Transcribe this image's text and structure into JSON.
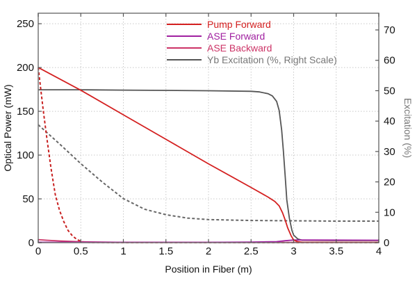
{
  "chart_data": {
    "type": "line",
    "title": "",
    "xlabel": "Position in Fiber (m)",
    "ylabel": "Optical Power (mW)",
    "ylabel_right": "Excitation (%)",
    "xlim": [
      0,
      4
    ],
    "ylim": [
      0,
      262
    ],
    "ylim_right": [
      0,
      75.5
    ],
    "xticks": [
      0,
      0.5,
      1,
      1.5,
      2,
      2.5,
      3,
      3.5,
      4
    ],
    "xtick_labels": [
      "0",
      "0.5",
      "1",
      "1.5",
      "2",
      "2.5",
      "3",
      "3.5",
      "4"
    ],
    "yticks": [
      0,
      50,
      100,
      150,
      200,
      250
    ],
    "ytick_labels": [
      "0",
      "50",
      "100",
      "150",
      "200",
      "250"
    ],
    "yticks_right": [
      0,
      10,
      20,
      30,
      40,
      50,
      60,
      70
    ],
    "ytick_labels_right": [
      "0",
      "10",
      "20",
      "30",
      "40",
      "50",
      "60",
      "70"
    ],
    "grid": true,
    "legend_position": "top-center",
    "series": [
      {
        "name": "Pump Forward",
        "axis": "left",
        "style": "solid",
        "color": "#d42020",
        "legend": true,
        "x": [
          0,
          0.5,
          1,
          1.5,
          2,
          2.5,
          2.7,
          2.78,
          2.83,
          2.87,
          2.9,
          2.93,
          2.97,
          3.0,
          3.05,
          3.1,
          3.5,
          4
        ],
        "y": [
          200,
          174,
          146,
          118,
          90,
          63,
          52,
          47,
          42,
          34,
          26,
          17,
          8,
          3,
          1,
          0.5,
          0.3,
          0.3
        ]
      },
      {
        "name": "ASE Forward",
        "axis": "left",
        "style": "solid",
        "color": "#a020a0",
        "legend": true,
        "x": [
          0,
          1,
          2,
          2.5,
          2.8,
          2.9,
          3.0,
          3.1,
          3.5,
          4
        ],
        "y": [
          0.5,
          0.4,
          0.4,
          0.6,
          1.2,
          2.2,
          3.0,
          3.0,
          2.9,
          2.8
        ]
      },
      {
        "name": "ASE Backward",
        "axis": "left",
        "style": "solid",
        "color": "#cc3366",
        "legend": true,
        "x": [
          0,
          0.1,
          0.25,
          0.5,
          0.75,
          1,
          2,
          3,
          4
        ],
        "y": [
          3.5,
          2.8,
          2.0,
          1.0,
          0.6,
          0.4,
          0.3,
          0.3,
          0.3
        ]
      },
      {
        "name": "Yb Excitation (%, Right Scale)",
        "axis": "right",
        "style": "solid",
        "color": "#555555",
        "legend": true,
        "x": [
          0,
          0.5,
          1,
          1.5,
          2,
          2.5,
          2.6,
          2.7,
          2.75,
          2.8,
          2.83,
          2.86,
          2.88,
          2.9,
          2.92,
          2.95,
          2.98,
          3.0,
          3.05,
          3.1,
          3.5,
          4
        ],
        "y": [
          50.3,
          50.3,
          50.2,
          50.1,
          50.0,
          49.8,
          49.6,
          49.0,
          48.3,
          46.5,
          43.5,
          37,
          30,
          22,
          14,
          8,
          4,
          2.5,
          1.2,
          0.8,
          0.7,
          0.7
        ]
      },
      {
        "name": "Pump (dashed)",
        "axis": "left",
        "style": "dashed",
        "color": "#c82020",
        "legend": false,
        "x": [
          0,
          0.03,
          0.06,
          0.1,
          0.15,
          0.2,
          0.25,
          0.3,
          0.35,
          0.4,
          0.45,
          0.5,
          0.55,
          0.6,
          1,
          4
        ],
        "y": [
          200,
          175,
          150,
          120,
          85,
          55,
          37,
          24,
          14,
          8,
          4,
          1.5,
          0.5,
          0.2,
          0.1,
          0.1
        ]
      },
      {
        "name": "Yb Excitation (dashed)",
        "axis": "right",
        "style": "dashed",
        "color": "#666666",
        "legend": false,
        "x": [
          0,
          0.25,
          0.5,
          0.75,
          1,
          1.25,
          1.5,
          1.75,
          2,
          2.5,
          3,
          3.5,
          4
        ],
        "y": [
          38.8,
          32.5,
          26,
          20,
          14.5,
          11,
          9.2,
          8.1,
          7.6,
          7.3,
          7.2,
          7.1,
          7.1
        ]
      }
    ]
  }
}
